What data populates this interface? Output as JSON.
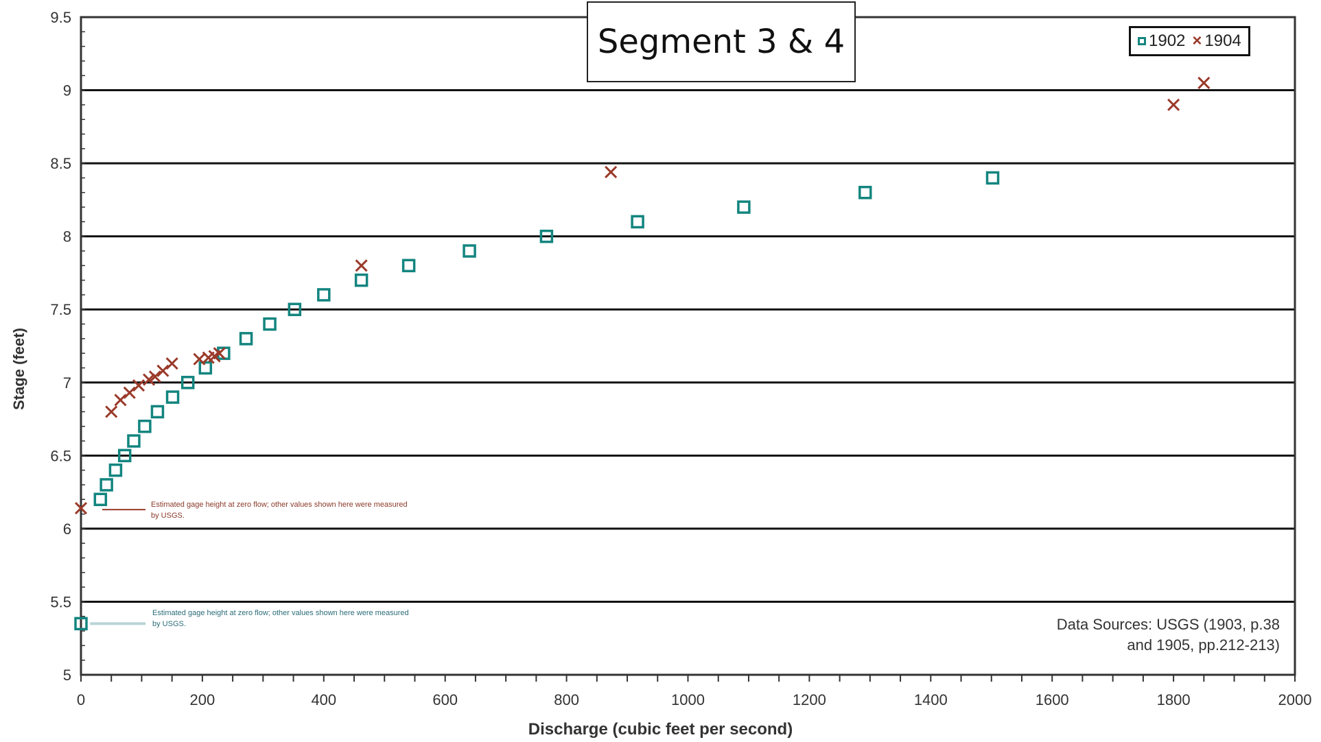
{
  "chart_data": {
    "type": "scatter",
    "title": "Segment 3 & 4",
    "xlabel": "Discharge (cubic feet per second)",
    "ylabel": "Stage (feet)",
    "xlim": [
      0,
      2000
    ],
    "ylim": [
      5,
      9.5
    ],
    "x_ticks": [
      "0",
      "200",
      "400",
      "600",
      "800",
      "1000",
      "1200",
      "1400",
      "1600",
      "1800",
      "2000"
    ],
    "y_ticks": [
      "5",
      "5.5",
      "6",
      "6.5",
      "7",
      "7.5",
      "8",
      "8.5",
      "9",
      "9.5"
    ],
    "grid": "horizontal major",
    "legend_position": "top-right",
    "series": [
      {
        "name": "1902",
        "marker": "square",
        "color": "#13857f",
        "points": [
          [
            0,
            5.35
          ],
          [
            32,
            6.2
          ],
          [
            42,
            6.3
          ],
          [
            57,
            6.4
          ],
          [
            72,
            6.5
          ],
          [
            87,
            6.6
          ],
          [
            105,
            6.7
          ],
          [
            126,
            6.8
          ],
          [
            151,
            6.9
          ],
          [
            176,
            7.0
          ],
          [
            205,
            7.1
          ],
          [
            235,
            7.2
          ],
          [
            272,
            7.3
          ],
          [
            311,
            7.4
          ],
          [
            352,
            7.5
          ],
          [
            400,
            7.6
          ],
          [
            462,
            7.7
          ],
          [
            540,
            7.8
          ],
          [
            640,
            7.9
          ],
          [
            767,
            8.0
          ],
          [
            917,
            8.1
          ],
          [
            1092,
            8.2
          ],
          [
            1292,
            8.3
          ],
          [
            1502,
            8.4
          ]
        ]
      },
      {
        "name": "1904",
        "marker": "x",
        "color": "#9a3a2a",
        "points": [
          [
            0,
            6.14
          ],
          [
            50,
            6.8
          ],
          [
            65,
            6.88
          ],
          [
            80,
            6.93
          ],
          [
            95,
            6.98
          ],
          [
            112,
            7.02
          ],
          [
            122,
            7.04
          ],
          [
            135,
            7.08
          ],
          [
            150,
            7.13
          ],
          [
            195,
            7.16
          ],
          [
            210,
            7.17
          ],
          [
            220,
            7.18
          ],
          [
            228,
            7.2
          ],
          [
            462,
            7.8
          ],
          [
            873,
            8.44
          ],
          [
            1800,
            8.9
          ],
          [
            1850,
            9.05
          ]
        ]
      }
    ],
    "annotations": [
      "Estimated gage height at zero flow; other values shown here were measured by USGS.",
      "Estimated gage height at zero flow; other values shown here were measured by USGS."
    ],
    "source_line1": "Data Sources: USGS (1903, p.38",
    "source_line2": "and 1905, pp.212-213)"
  }
}
